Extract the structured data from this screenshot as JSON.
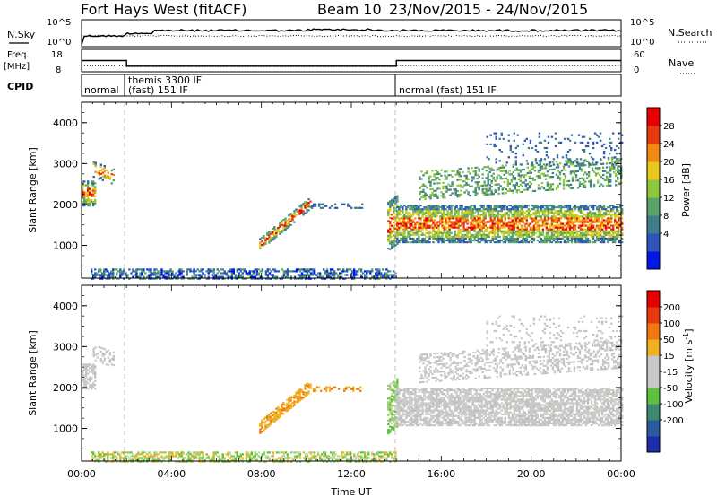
{
  "header": {
    "station": "Fort Hays West (fitACF)",
    "beam": "Beam 10",
    "date_range": "23/Nov/2015 - 24/Nov/2015"
  },
  "chart_data": [
    {
      "type": "line",
      "panel": "noise",
      "left_label": "N.Sky",
      "right_label": "N.Search",
      "left_ticks": [
        "10^5",
        "10^0"
      ],
      "right_ticks": [
        "10^5",
        "10^0"
      ]
    },
    {
      "type": "line",
      "panel": "frequency",
      "left_label": "Freq.",
      "left_unit": "[MHz]",
      "right_label": "Nave",
      "left_ticks": [
        "18",
        "8"
      ],
      "right_ticks": [
        "60",
        "0"
      ],
      "freq_segments": [
        {
          "start_h": 0.0,
          "end_h": 2.0,
          "freq": 13.0
        },
        {
          "start_h": 2.0,
          "end_h": 14.0,
          "freq": 10.5
        },
        {
          "start_h": 14.0,
          "end_h": 24.0,
          "freq": 13.0
        }
      ],
      "nave_segments": [
        {
          "start_h": 0.0,
          "end_h": 2.0,
          "nave": 16
        },
        {
          "start_h": 2.0,
          "end_h": 14.0,
          "nave": 14
        },
        {
          "start_h": 14.0,
          "end_h": 24.0,
          "nave": 16
        }
      ]
    },
    {
      "type": "table",
      "panel": "cpid",
      "label": "CPID",
      "segments": [
        {
          "start_h": 0.0,
          "end_h": 2.0,
          "line1": "normal",
          "line2": ""
        },
        {
          "start_h": 2.0,
          "end_h": 14.0,
          "line1": "themis 3300 IF",
          "line2": "(fast) 151 IF"
        },
        {
          "start_h": 14.0,
          "end_h": 24.0,
          "line1": "normal (fast) 151 IF",
          "line2": ""
        }
      ]
    },
    {
      "type": "heatmap",
      "panel": "power",
      "ylabel": "Slant Range [km]",
      "yticks": [
        1000,
        2000,
        3000,
        4000
      ],
      "ylim": [
        200,
        4500
      ],
      "colorbar_label": "Power [dB]",
      "colorbar_ticks": [
        "28",
        "24",
        "20",
        "16",
        "12",
        "8",
        "4"
      ],
      "colors": [
        "#0018e8",
        "#2e55b8",
        "#3f7d8a",
        "#5aa46a",
        "#8cc83e",
        "#e8c818",
        "#f08a10",
        "#e83a10",
        "#e80000"
      ]
    },
    {
      "type": "heatmap",
      "panel": "velocity",
      "ylabel": "Slant Range [km]",
      "yticks": [
        1000,
        2000,
        3000,
        4000
      ],
      "ylim": [
        200,
        4500
      ],
      "colorbar_label": "Velocity [m s",
      "colorbar_label_sup": "-1",
      "colorbar_label_end": "]",
      "colorbar_ticks": [
        "200",
        "100",
        "50",
        "15",
        "-15",
        "-50",
        "-100",
        "-200"
      ],
      "colors": [
        "#1c2ea8",
        "#2a5aa0",
        "#3c8a70",
        "#5cc040",
        "#c8c8c8",
        "#c8c8c8",
        "#f0b020",
        "#f07810",
        "#e83a10",
        "#e80000"
      ]
    }
  ],
  "xaxis": {
    "label": "Time UT",
    "ticks": [
      "00:00",
      "04:00",
      "08:00",
      "12:00",
      "16:00",
      "20:00",
      "00:00"
    ]
  }
}
